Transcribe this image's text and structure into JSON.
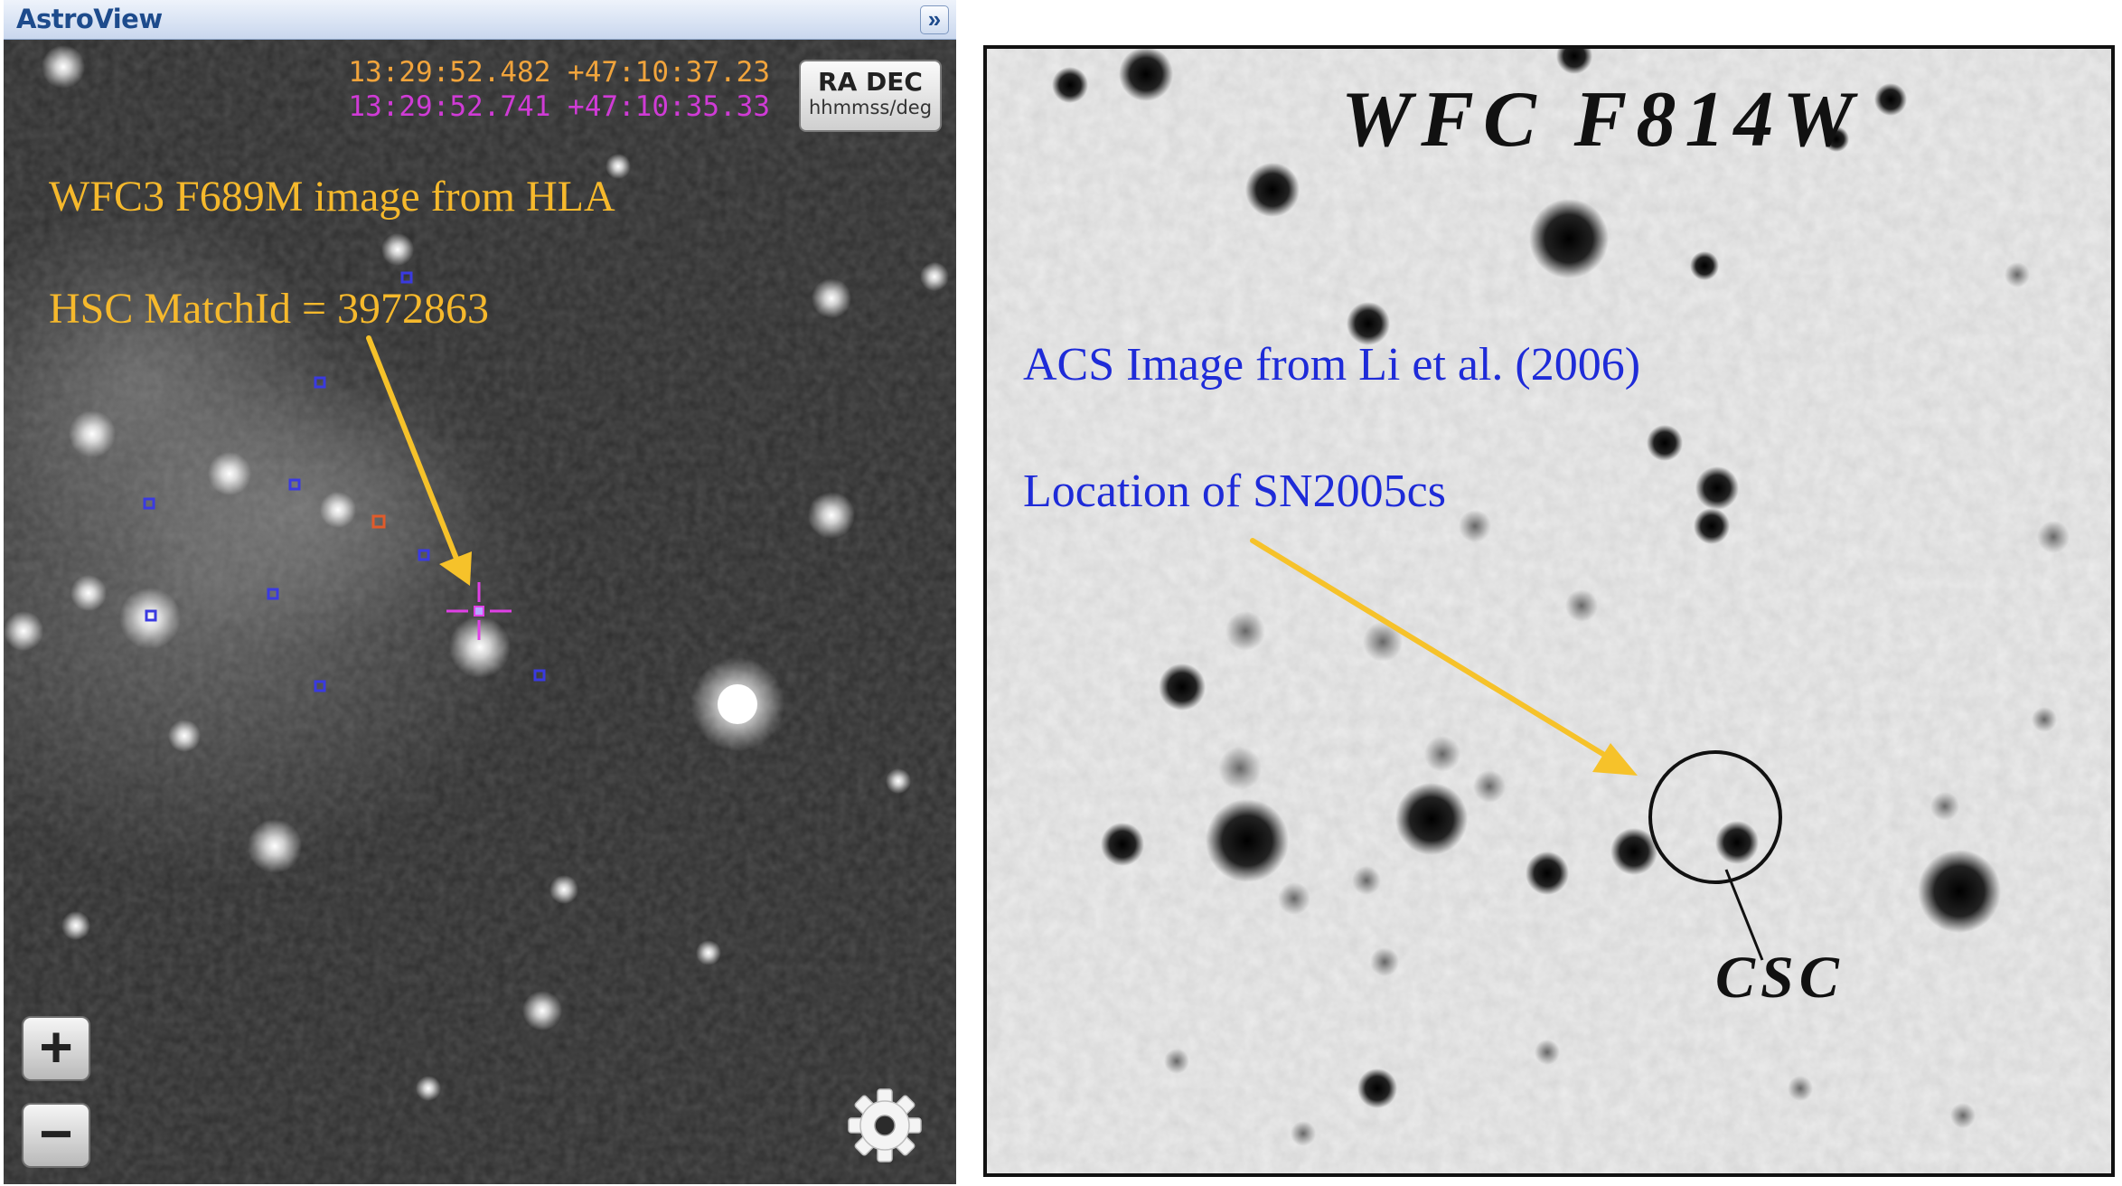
{
  "left_panel": {
    "title": "AstroView",
    "collapse_icon": "double-chevron-right-icon",
    "collapse_glyph": "»",
    "coordinates": {
      "orange": "13:29:52.482 +47:10:37.23",
      "magenta": "13:29:52.741 +47:10:35.33"
    },
    "coord_toggle": {
      "label": "RA DEC",
      "unit": "hhmmss/deg"
    },
    "annotations": {
      "line1": "WFC3 F689M image from HLA",
      "line2": "HSC MatchId = 3972863"
    },
    "zoom_in_label": "+",
    "zoom_out_label": "−",
    "settings_icon": "gear-icon",
    "colors": {
      "annotation": "#f6b92c",
      "coord_orange": "#f1a43c",
      "coord_magenta": "#d03bd6",
      "catalog_marker": "#3a3ae0",
      "selected_marker": "#e15b2a",
      "crosshair": "#e040e6"
    }
  },
  "right_panel": {
    "filter_label": "WFC F814W",
    "annotations": {
      "line1": "ACS Image from Li et al. (2006)",
      "line2": "Location of SN2005cs"
    },
    "circle_label": "CSC",
    "colors": {
      "annotation": "#1e2bd8",
      "arrow": "#f6c22a"
    }
  }
}
